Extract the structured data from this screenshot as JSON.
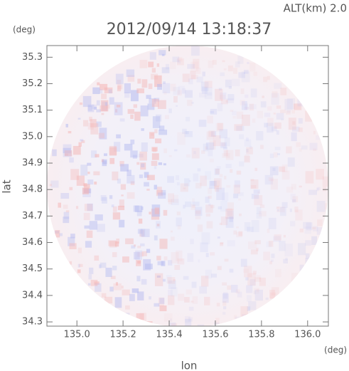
{
  "chart_data": {
    "type": "radar",
    "title": "2012/09/14 13:18:37",
    "subtitle": "ALT(km) 2.0",
    "x_label": "lon",
    "y_label": "lat",
    "x_unit": "(deg)",
    "y_unit": "(deg)",
    "xlim": [
      134.87,
      136.09
    ],
    "ylim": [
      34.284,
      35.344
    ],
    "xticks": [
      {
        "value": 135,
        "label": "135.0"
      },
      135.2,
      135.4,
      135.6,
      135.8,
      {
        "value": 136,
        "label": "136.0"
      }
    ],
    "yticks": [
      34.3,
      34.4,
      34.5,
      34.6,
      34.7,
      34.8,
      34.9,
      {
        "value": 35,
        "label": "35.0"
      },
      35.1,
      35.2,
      35.3
    ]
  }
}
